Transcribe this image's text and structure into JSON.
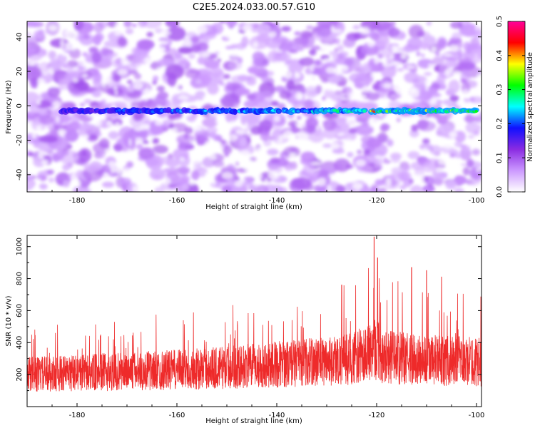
{
  "title": "C2E5.2024.033.00.57.G10",
  "chart_data": [
    {
      "type": "heatmap",
      "xlabel": "Height of straight line (km)",
      "ylabel": "Frequency (Hz)",
      "xlim": [
        -190,
        -99
      ],
      "ylim": [
        -50,
        49
      ],
      "x_ticks": [
        -180,
        -160,
        -140,
        -120,
        -100
      ],
      "y_ticks": [
        -40,
        -20,
        0,
        20,
        40
      ],
      "colorbar": {
        "label": "Normalized spectral amplitude",
        "range": [
          0,
          0.5
        ],
        "ticks": [
          "0.0",
          "0.1",
          "0.2",
          "0.3",
          "0.4",
          "0.5"
        ],
        "colors": [
          "#ffffff",
          "#cc99ff",
          "#8a2be2",
          "#1010ff",
          "#00ffff",
          "#00ff00",
          "#ffff00",
          "#ff0000",
          "#ff0099"
        ]
      },
      "signal_band": {
        "frequency_hz": -3,
        "from_km": -183,
        "to_km": -100,
        "peak_km": -120.5,
        "peak_amplitude": 0.45
      }
    },
    {
      "type": "line",
      "xlabel": "Height of straight line (km)",
      "ylabel": "SNR (10 * v/v)",
      "xlim": [
        -190,
        -99
      ],
      "ylim": [
        0,
        1070
      ],
      "x_ticks": [
        -180,
        -160,
        -140,
        -120,
        -100
      ],
      "y_ticks": [
        200,
        400,
        600,
        800,
        1000
      ],
      "line_color": "#ee2a2a",
      "series": [
        {
          "profile_x": [
            -190,
            -175,
            -160,
            -150,
            -140,
            -130,
            -125,
            -122,
            -120.5,
            -119,
            -115,
            -110,
            -105,
            -99
          ],
          "baseline": [
            200,
            215,
            230,
            245,
            265,
            285,
            300,
            330,
            380,
            320,
            300,
            290,
            285,
            280
          ],
          "peaks": [
            {
              "x": -120.5,
              "y": 1060
            },
            {
              "x": -119.8,
              "y": 930
            },
            {
              "x": -113,
              "y": 870
            },
            {
              "x": -110,
              "y": 850
            },
            {
              "x": -127,
              "y": 760
            },
            {
              "x": -107,
              "y": 810
            }
          ]
        }
      ]
    }
  ]
}
